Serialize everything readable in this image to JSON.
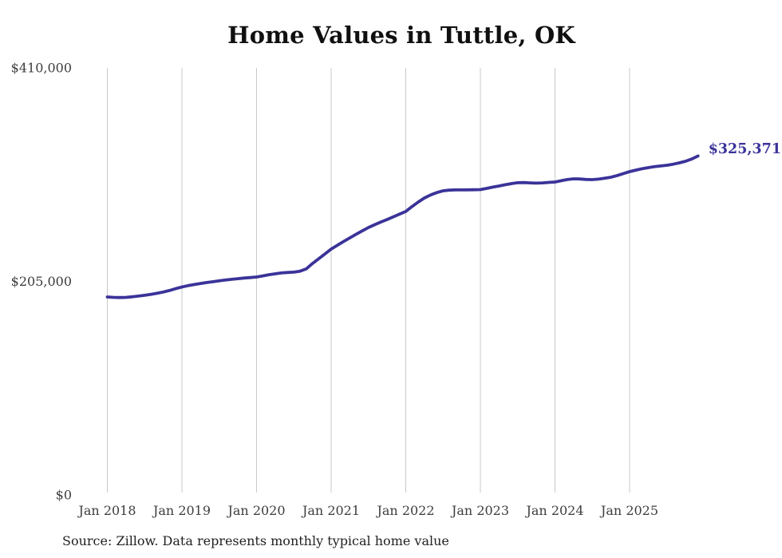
{
  "source_note": "Source: Zillow. Data represents monthly typical home value",
  "colors": {
    "line": "#3b3399",
    "grid": "#c9c9c9",
    "axis_text": "#3d3d3d",
    "title_text": "#101010",
    "source_text": "#222222",
    "background": "#ffffff"
  },
  "chart_data": {
    "type": "line",
    "title": "Home Values in Tuttle, OK",
    "xlabel": "",
    "ylabel": "",
    "ylim": [
      0,
      410000
    ],
    "grid": "vertical-only",
    "legend": "none",
    "end_label": "$325,371",
    "final_value": 325371,
    "x_start": "Jan 2018",
    "x_end": "Dec 2025",
    "x_interval": "month",
    "x_tick_labels": [
      "Jan 2018",
      "Jan 2019",
      "Jan 2020",
      "Jan 2021",
      "Jan 2022",
      "Jan 2023",
      "Jan 2024",
      "Jan 2025"
    ],
    "y_ticks": [
      {
        "label": "$410,000",
        "value": 410000
      },
      {
        "label": "$205,000",
        "value": 205000
      },
      {
        "label": "$0",
        "value": 0
      }
    ],
    "series_name": "Typical home value",
    "values": [
      190058,
      189700,
      189500,
      189700,
      190200,
      190900,
      191700,
      192600,
      193600,
      194800,
      196300,
      198000,
      199600,
      200900,
      202000,
      203000,
      203900,
      204700,
      205500,
      206300,
      207000,
      207600,
      208200,
      208700,
      209200,
      210300,
      211400,
      212300,
      213100,
      213600,
      213900,
      214800,
      217000,
      222200,
      226800,
      231400,
      236000,
      239700,
      243300,
      246800,
      250200,
      253500,
      256700,
      259400,
      262000,
      264400,
      267000,
      269600,
      272100,
      276800,
      281200,
      285100,
      288000,
      290300,
      292000,
      292600,
      292800,
      292800,
      292900,
      293000,
      293100,
      294300,
      295500,
      296600,
      297800,
      298900,
      299700,
      299900,
      299600,
      299300,
      299600,
      300000,
      300400,
      301600,
      302800,
      303500,
      303300,
      302900,
      302700,
      303200,
      304000,
      305000,
      306600,
      308500,
      310400,
      311800,
      313100,
      314200,
      315100,
      315800,
      316500,
      317500,
      318800,
      320300,
      322500,
      325371
    ]
  }
}
